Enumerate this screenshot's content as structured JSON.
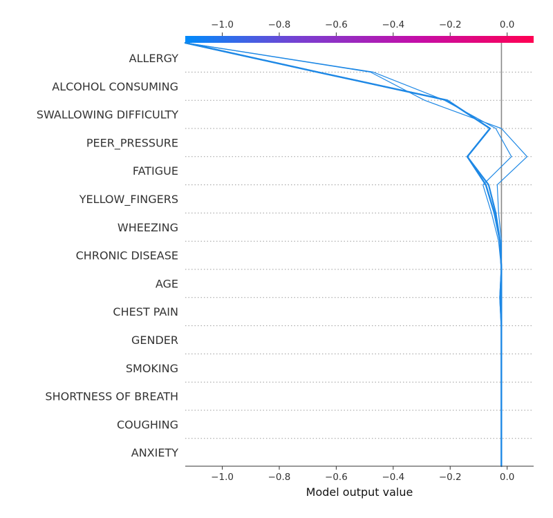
{
  "chart_data": {
    "type": "line",
    "subtype": "shap-decision-plot",
    "xlabel": "Model output value",
    "xlim": [
      -1.13,
      0.093
    ],
    "x_ticks": [
      -1.0,
      -0.8,
      -0.6,
      -0.4,
      -0.2,
      0.0
    ],
    "x_tick_labels": [
      "−1.0",
      "−0.8",
      "−0.6",
      "−0.4",
      "−0.2",
      "0.0"
    ],
    "top_tick_labels": [
      "−1.0",
      "−0.8",
      "−0.6",
      "−0.4",
      "−0.2",
      "0.0"
    ],
    "base_value": -0.02,
    "features": [
      "ALLERGY ",
      "ALCOHOL CONSUMING",
      "SWALLOWING DIFFICULTY",
      "PEER_PRESSURE",
      "FATIGUE ",
      "YELLOW_FINGERS",
      "WHEEZING",
      "CHRONIC DISEASE",
      "AGE",
      "CHEST PAIN",
      "GENDER",
      "SMOKING",
      "SHORTNESS OF BREATH",
      "COUGHING",
      "ANXIETY"
    ],
    "colorbar_colors": [
      "#008bfb",
      "#7a3ed0",
      "#c40ea8",
      "#ff0052"
    ],
    "line_color": "#1e88e5",
    "series": [
      {
        "path_x": [
          -1.13,
          -0.665,
          -0.21,
          -0.06,
          -0.14,
          -0.075,
          -0.045,
          -0.025,
          -0.02,
          -0.025,
          -0.02,
          -0.02,
          -0.02,
          -0.02,
          -0.02,
          -0.02
        ]
      },
      {
        "path_x": [
          -1.13,
          -0.665,
          -0.21,
          -0.06,
          -0.14,
          -0.075,
          -0.045,
          -0.025,
          -0.02,
          -0.025,
          -0.02,
          -0.02,
          -0.02,
          -0.02,
          -0.02,
          -0.02
        ]
      },
      {
        "path_x": [
          -1.13,
          -0.665,
          -0.21,
          -0.06,
          -0.14,
          -0.065,
          -0.04,
          -0.025,
          -0.02,
          -0.02,
          -0.02,
          -0.02,
          -0.02,
          -0.02,
          -0.02,
          -0.02
        ]
      },
      {
        "path_x": [
          -1.13,
          -0.48,
          -0.29,
          -0.02,
          0.07,
          -0.035,
          -0.03,
          -0.02,
          -0.02,
          -0.02,
          -0.02,
          -0.02,
          -0.02,
          -0.02,
          -0.02,
          -0.02
        ]
      },
      {
        "path_x": [
          -1.13,
          -0.47,
          -0.22,
          -0.04,
          0.015,
          -0.085,
          -0.055,
          -0.03,
          -0.02,
          -0.02,
          -0.02,
          -0.02,
          -0.02,
          -0.02,
          -0.02,
          -0.02
        ]
      }
    ],
    "series_widths": [
      2.2,
      2.2,
      2.2,
      1.2,
      1.2
    ],
    "grid": "horizontal-dotted"
  }
}
